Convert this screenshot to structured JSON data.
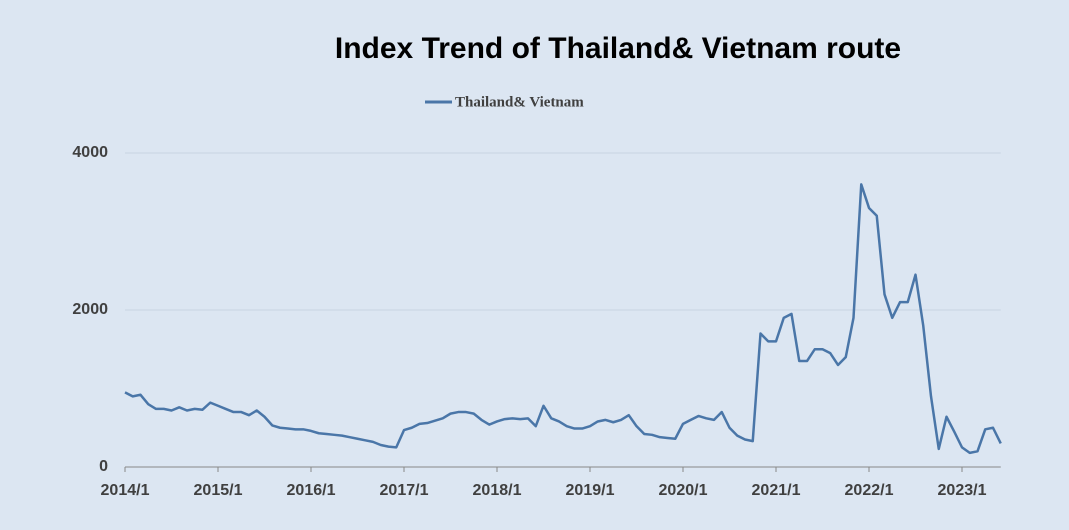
{
  "chart_data": {
    "type": "line",
    "title": "Index Trend of Thailand& Vietnam route",
    "categories": [
      "2014/1",
      null,
      null,
      null,
      null,
      null,
      null,
      null,
      null,
      null,
      null,
      null,
      "2015/1",
      null,
      null,
      null,
      null,
      null,
      null,
      null,
      null,
      null,
      null,
      null,
      "2016/1",
      null,
      null,
      null,
      null,
      null,
      null,
      null,
      null,
      null,
      null,
      null,
      "2017/1",
      null,
      null,
      null,
      null,
      null,
      null,
      null,
      null,
      null,
      null,
      null,
      "2018/1",
      null,
      null,
      null,
      null,
      null,
      null,
      null,
      null,
      null,
      null,
      null,
      "2019/1",
      null,
      null,
      null,
      null,
      null,
      null,
      null,
      null,
      null,
      null,
      null,
      "2020/1",
      null,
      null,
      null,
      null,
      null,
      null,
      null,
      null,
      null,
      null,
      null,
      "2021/1",
      null,
      null,
      null,
      null,
      null,
      null,
      null,
      null,
      null,
      null,
      null,
      "2022/1",
      null,
      null,
      null,
      null,
      null,
      null,
      null,
      null,
      null,
      null,
      null,
      "2023/1",
      null,
      null,
      null,
      null,
      null
    ],
    "series": [
      {
        "name": "Thailand& Vietnam",
        "color": "#4a76a8",
        "values": [
          950,
          900,
          920,
          800,
          740,
          740,
          720,
          760,
          720,
          740,
          730,
          820,
          780,
          740,
          700,
          700,
          660,
          720,
          640,
          530,
          500,
          490,
          480,
          480,
          460,
          430,
          420,
          410,
          400,
          380,
          360,
          340,
          320,
          280,
          260,
          250,
          470,
          500,
          550,
          560,
          590,
          620,
          680,
          700,
          700,
          680,
          600,
          540,
          580,
          610,
          620,
          610,
          620,
          520,
          780,
          620,
          580,
          520,
          490,
          490,
          520,
          580,
          600,
          570,
          600,
          660,
          520,
          420,
          410,
          380,
          370,
          360,
          550,
          600,
          650,
          620,
          600,
          700,
          500,
          400,
          350,
          330,
          1700,
          1600,
          1600,
          1900,
          1950,
          1350,
          1350,
          1500,
          1500,
          1450,
          1300,
          1400,
          1900,
          3600,
          3300,
          3200,
          2200,
          1900,
          2100,
          2100,
          2450,
          1800,
          900,
          230,
          640,
          450,
          250,
          180,
          200,
          480,
          500,
          300
        ]
      }
    ],
    "ylim": [
      0,
      4000
    ],
    "yticks": [
      0,
      2000,
      4000
    ],
    "grid": true
  }
}
